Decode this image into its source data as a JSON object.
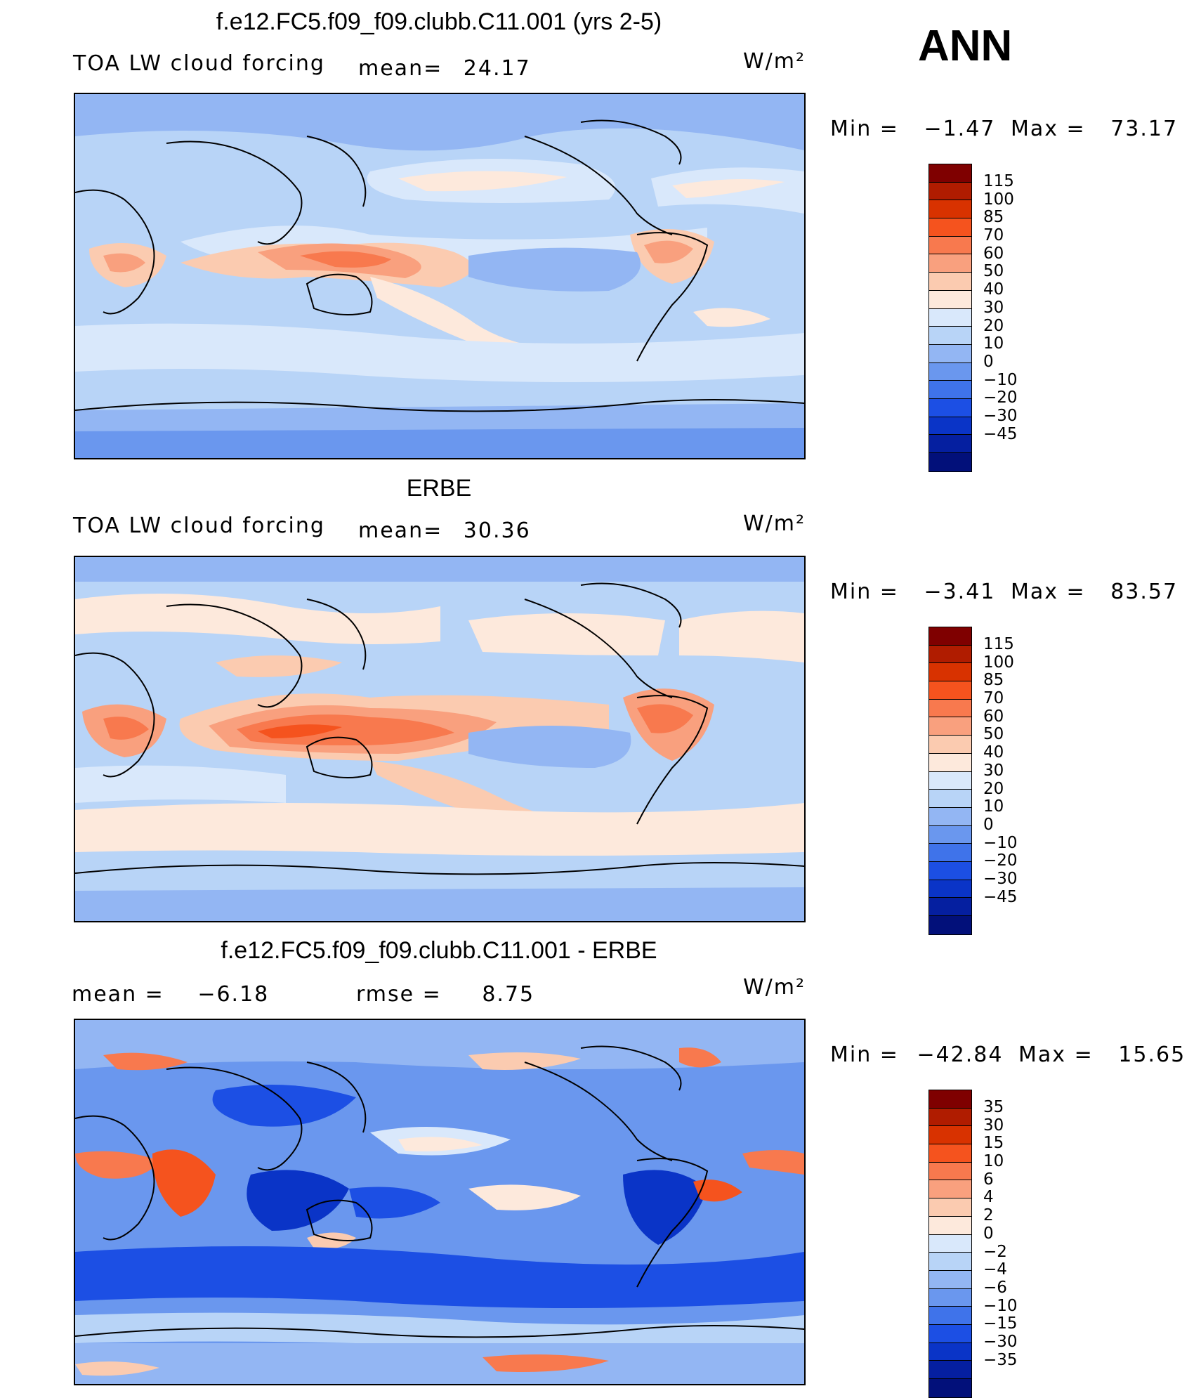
{
  "season": "ANN",
  "units": "W/m²",
  "panels": [
    {
      "title": "f.e12.FC5.f09_f09.clubb.C11.001 (yrs 2-5)",
      "variable": "TOA LW cloud forcing",
      "stats": {
        "mean_label": "mean=",
        "mean": "24.17"
      },
      "minmax": {
        "min_label": "Min =",
        "min": "−1.47",
        "max_label": "Max =",
        "max": "73.17"
      },
      "colorbar": {
        "colors": [
          "#7f0000",
          "#b01c00",
          "#d83200",
          "#f5531e",
          "#f8794e",
          "#f9a07e",
          "#fbcbb0",
          "#fde9dc",
          "#d9e8fb",
          "#b8d4f7",
          "#93b6f3",
          "#6a97ee",
          "#3f73ea",
          "#1c4fe4",
          "#0a34c7",
          "#051fa0",
          "#02107a"
        ],
        "ticks": [
          "115",
          "100",
          "85",
          "70",
          "60",
          "50",
          "40",
          "30",
          "20",
          "10",
          "0",
          "−10",
          "−20",
          "−30",
          "−45"
        ]
      }
    },
    {
      "title": "ERBE",
      "variable": "TOA LW cloud forcing",
      "stats": {
        "mean_label": "mean=",
        "mean": "30.36"
      },
      "minmax": {
        "min_label": "Min =",
        "min": "−3.41",
        "max_label": "Max =",
        "max": "83.57"
      },
      "colorbar": {
        "colors": [
          "#7f0000",
          "#b01c00",
          "#d83200",
          "#f5531e",
          "#f8794e",
          "#f9a07e",
          "#fbcbb0",
          "#fde9dc",
          "#d9e8fb",
          "#b8d4f7",
          "#93b6f3",
          "#6a97ee",
          "#3f73ea",
          "#1c4fe4",
          "#0a34c7",
          "#051fa0",
          "#02107a"
        ],
        "ticks": [
          "115",
          "100",
          "85",
          "70",
          "60",
          "50",
          "40",
          "30",
          "20",
          "10",
          "0",
          "−10",
          "−20",
          "−30",
          "−45"
        ]
      }
    },
    {
      "title": "f.e12.FC5.f09_f09.clubb.C11.001 - ERBE",
      "variable": "",
      "stats": {
        "mean_label": "mean =",
        "mean": "−6.18",
        "rmse_label": "rmse =",
        "rmse": "8.75"
      },
      "minmax": {
        "min_label": "Min =",
        "min": "−42.84",
        "max_label": "Max =",
        "max": "15.65"
      },
      "colorbar": {
        "colors": [
          "#7f0000",
          "#b01c00",
          "#d83200",
          "#f5531e",
          "#f8794e",
          "#f9a07e",
          "#fbcbb0",
          "#fde9dc",
          "#d9e8fb",
          "#b8d4f7",
          "#93b6f3",
          "#6a97ee",
          "#3f73ea",
          "#1c4fe4",
          "#0a34c7",
          "#051fa0",
          "#02107a"
        ],
        "ticks": [
          "35",
          "30",
          "15",
          "10",
          "6",
          "4",
          "2",
          "0",
          "−2",
          "−4",
          "−6",
          "−10",
          "−15",
          "−30",
          "−35"
        ]
      }
    }
  ]
}
